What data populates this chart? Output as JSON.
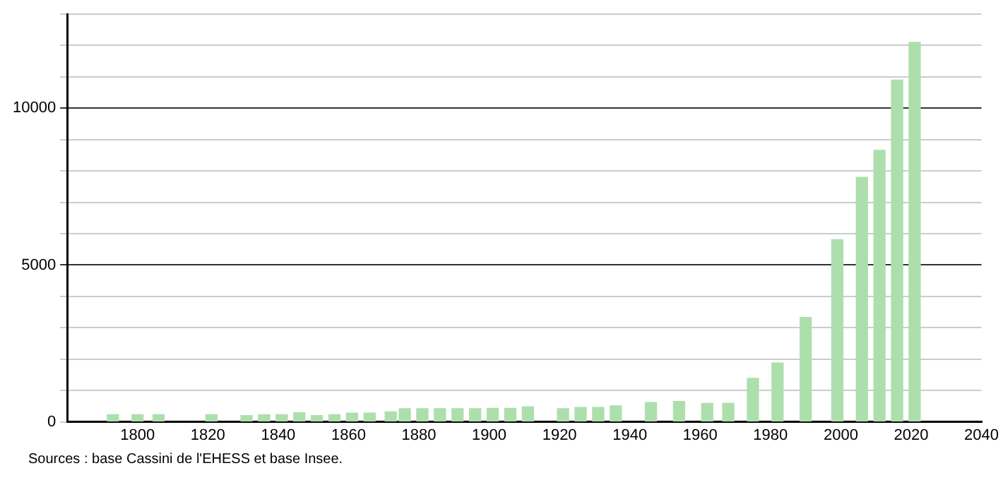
{
  "chart_data": {
    "type": "bar",
    "x": [
      1793,
      1800,
      1806,
      1821,
      1831,
      1836,
      1841,
      1846,
      1851,
      1856,
      1861,
      1866,
      1872,
      1876,
      1881,
      1886,
      1891,
      1896,
      1901,
      1906,
      1911,
      1921,
      1926,
      1931,
      1936,
      1946,
      1954,
      1962,
      1968,
      1975,
      1982,
      1990,
      1999,
      2006,
      2011,
      2016,
      2021
    ],
    "values": [
      230,
      230,
      230,
      230,
      200,
      230,
      230,
      290,
      200,
      230,
      280,
      280,
      320,
      420,
      420,
      420,
      420,
      420,
      430,
      430,
      480,
      420,
      460,
      460,
      510,
      620,
      650,
      590,
      590,
      1390,
      1880,
      3330,
      5810,
      7800,
      8660,
      10900,
      12100
    ],
    "color": "#addfad",
    "xlim": [
      1780,
      2040
    ],
    "xticks": [
      1800,
      1820,
      1840,
      1860,
      1880,
      1900,
      1920,
      1940,
      1960,
      1980,
      2000,
      2020,
      2040
    ],
    "ylim": [
      0,
      13000
    ],
    "yticks": [
      0,
      {
        "value": 1000,
        "label": null
      },
      {
        "value": 2000,
        "label": null
      },
      {
        "value": 3000,
        "label": null
      },
      {
        "value": 4000,
        "label": null
      },
      5000,
      {
        "value": 6000,
        "label": null
      },
      {
        "value": 7000,
        "label": null
      },
      {
        "value": 8000,
        "label": null
      },
      {
        "value": 9000,
        "label": null
      },
      10000,
      {
        "value": 11000,
        "label": null
      },
      {
        "value": 12000,
        "label": null
      },
      {
        "value": 13000,
        "label": null
      }
    ],
    "grid": "y",
    "annotations": [
      "Sources : base Cassini de l'EHESS et base Insee."
    ]
  }
}
